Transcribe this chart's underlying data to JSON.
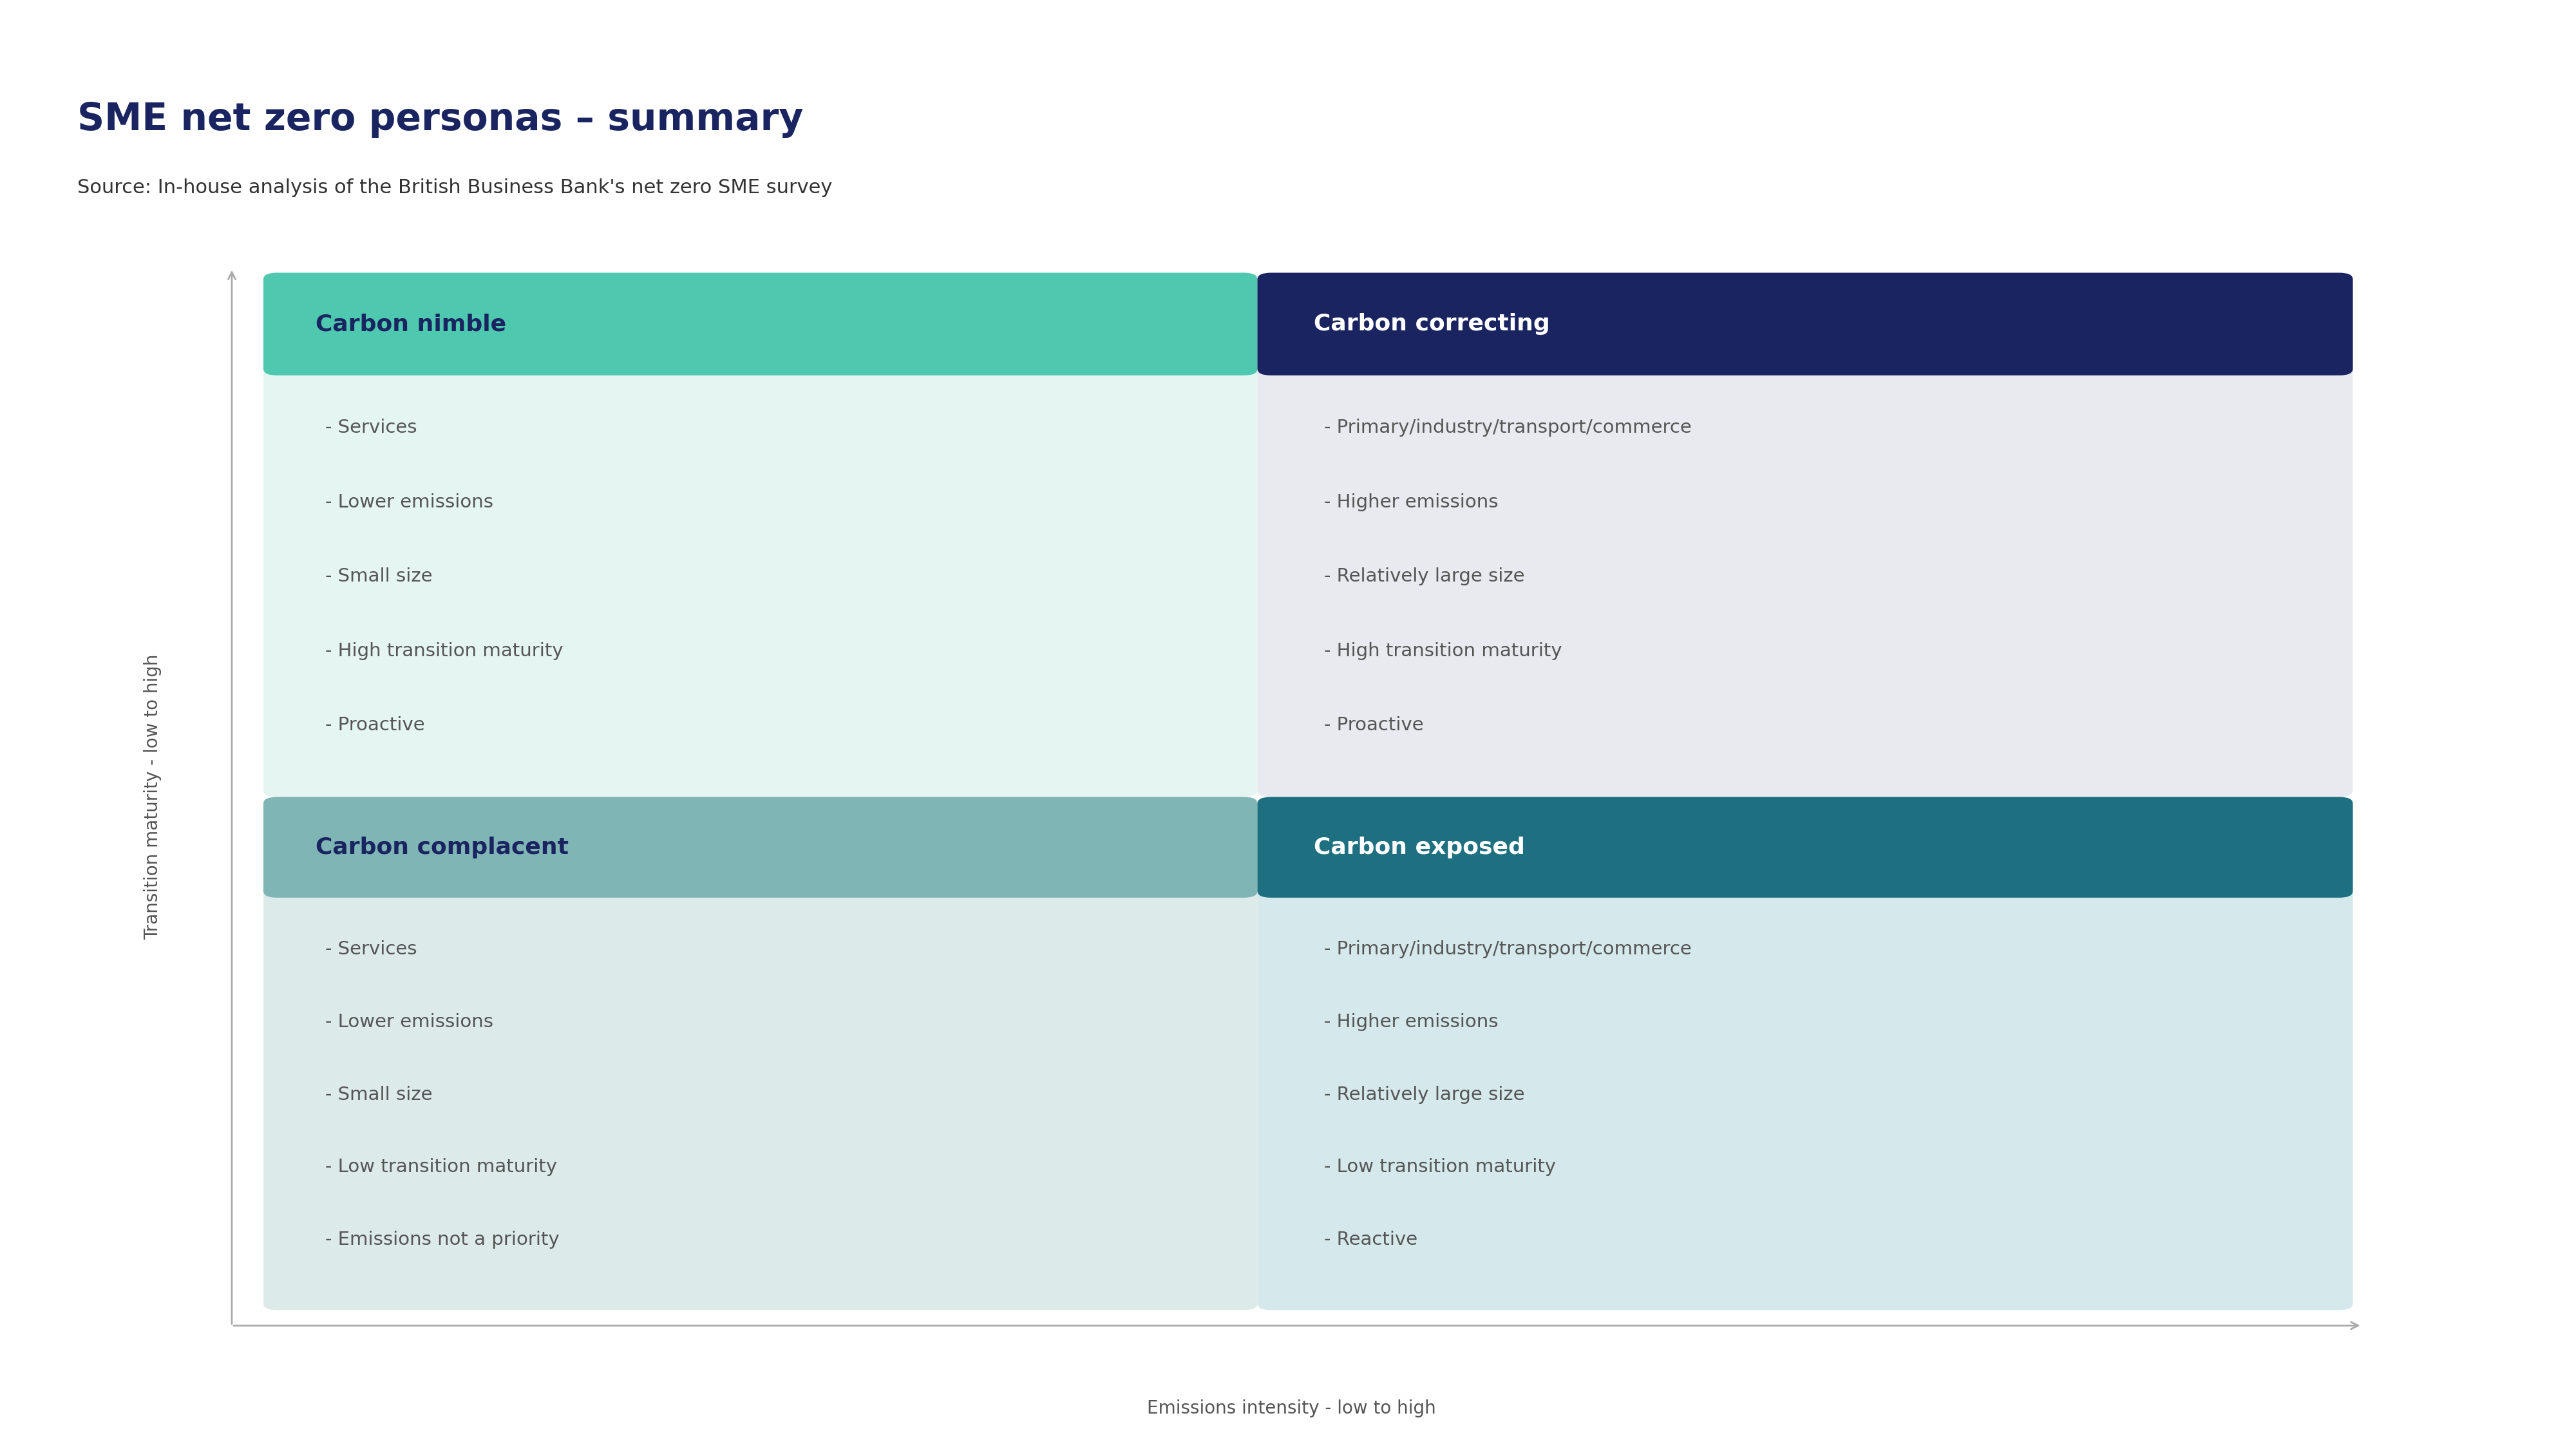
{
  "title": "SME net zero personas – summary",
  "source": "Source: In-house analysis of the British Business Bank's net zero SME survey",
  "xlabel": "Emissions intensity - low to high",
  "ylabel": "Transition maturity - low to high",
  "title_color": "#1a2460",
  "source_color": "#333333",
  "axis_label_color": "#555555",
  "background_color": "#ffffff",
  "arrow_color": "#aaaaaa",
  "quadrants": [
    {
      "name": "Carbon nimble",
      "position": "top_left",
      "header_color": "#4ec9b0",
      "body_color": "#e5f5f2",
      "header_text_color": "#1a2460",
      "body_text_color": "#555555",
      "bullets": [
        "- Services",
        "- Lower emissions",
        "- Small size",
        "- High transition maturity",
        "- Proactive"
      ]
    },
    {
      "name": "Carbon correcting",
      "position": "top_right",
      "header_color": "#1a2460",
      "body_color": "#e8eaf0",
      "header_text_color": "#ffffff",
      "body_text_color": "#555555",
      "bullets": [
        "- Primary/industry/transport/commerce",
        "- Higher emissions",
        "- Relatively large size",
        "- High transition maturity",
        "- Proactive"
      ]
    },
    {
      "name": "Carbon complacent",
      "position": "bottom_left",
      "header_color": "#7fb5b5",
      "body_color": "#ddeaea",
      "header_text_color": "#1a2460",
      "body_text_color": "#555555",
      "bullets": [
        "- Services",
        "- Lower emissions",
        "- Small size",
        "- Low transition maturity",
        "- Emissions not a priority"
      ]
    },
    {
      "name": "Carbon exposed",
      "position": "bottom_right",
      "header_color": "#1e7080",
      "body_color": "#d5e8eb",
      "header_text_color": "#ffffff",
      "body_text_color": "#555555",
      "bullets": [
        "- Primary/industry/transport/commerce",
        "- Higher emissions",
        "- Relatively large size",
        "- Low transition maturity",
        "- Reactive"
      ]
    }
  ]
}
